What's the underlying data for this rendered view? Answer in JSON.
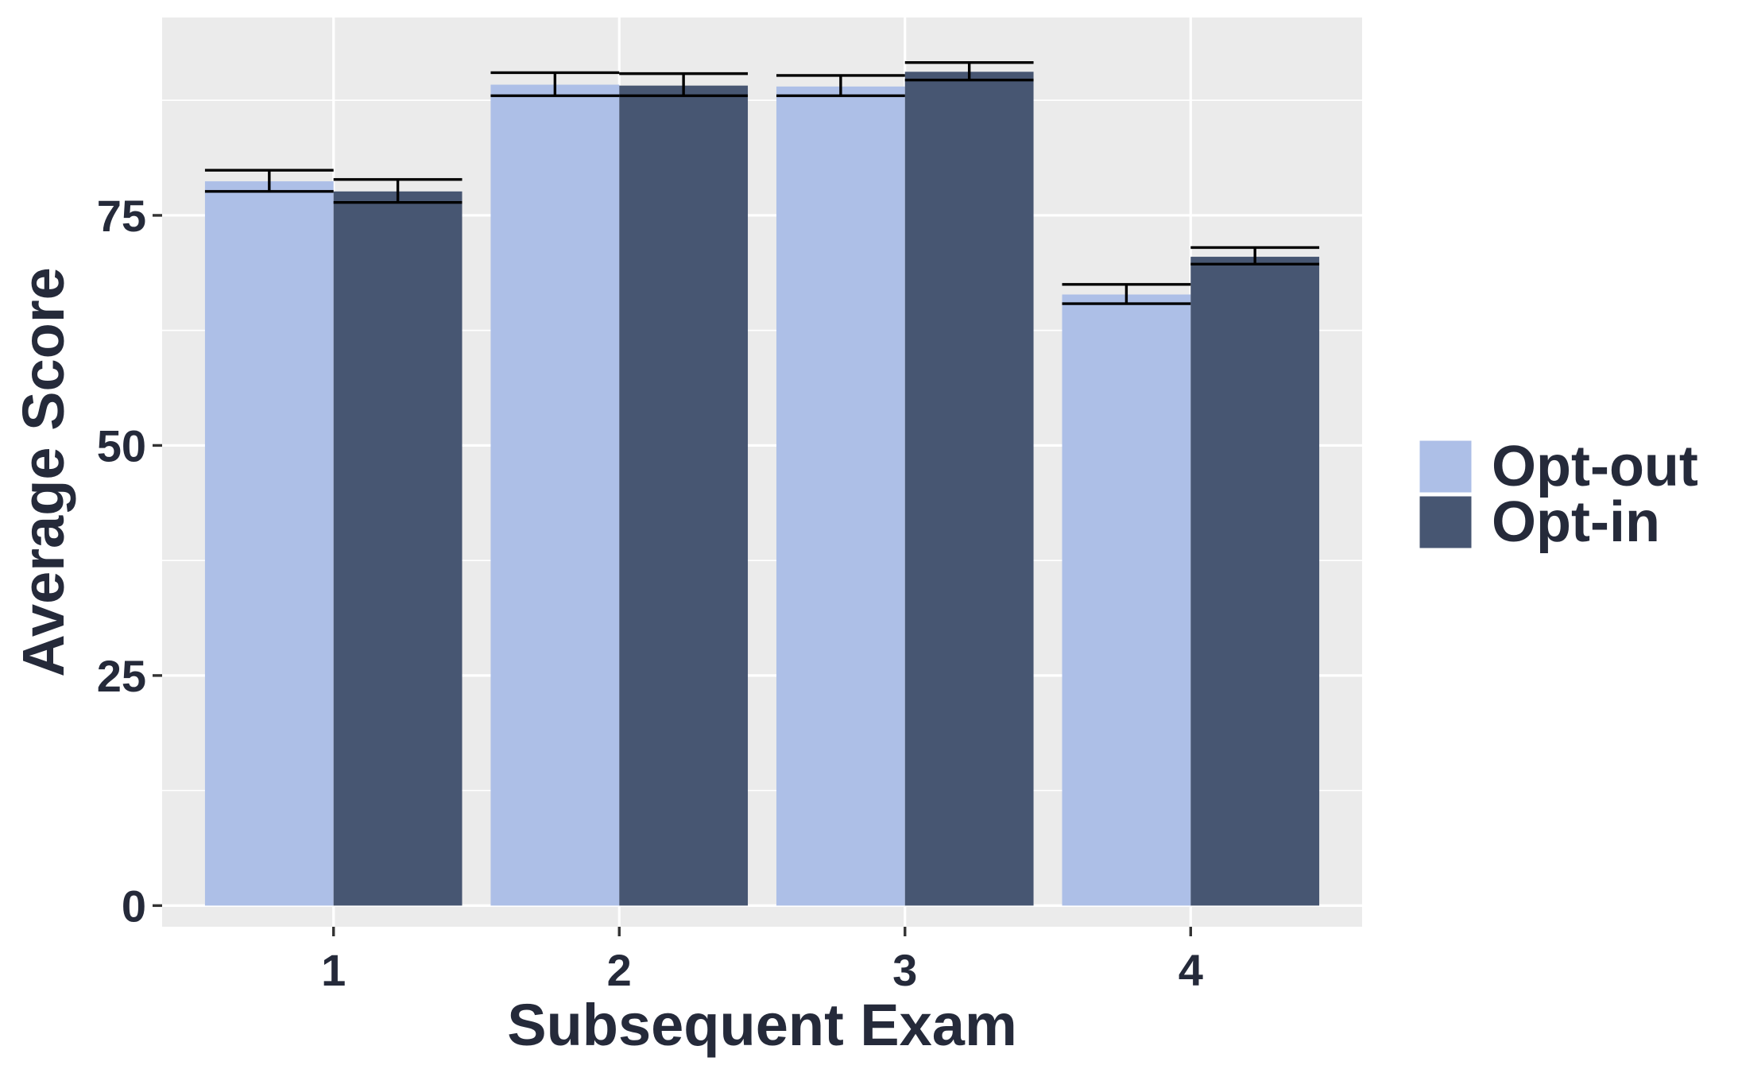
{
  "chart_data": {
    "type": "bar",
    "title": "",
    "xlabel": "Subsequent Exam",
    "ylabel": "Average Score",
    "categories": [
      "1",
      "2",
      "3",
      "4"
    ],
    "ylim": [
      -2.3,
      96.5
    ],
    "yticks": [
      0,
      25,
      50,
      75
    ],
    "yticks_minor": [
      12.5,
      37.5,
      62.5,
      87.5
    ],
    "grid": true,
    "legend_position": "right",
    "series": [
      {
        "name": "Opt-out",
        "color": "#adbfe7",
        "values": [
          78.7,
          89.2,
          89.0,
          66.4
        ],
        "error_low": [
          77.6,
          88.0,
          88.0,
          65.4
        ],
        "error_high": [
          79.9,
          90.5,
          90.2,
          67.5
        ]
      },
      {
        "name": "Opt-in",
        "color": "#475672",
        "values": [
          77.6,
          89.1,
          90.6,
          70.5
        ],
        "error_low": [
          76.4,
          88.0,
          89.7,
          69.7
        ],
        "error_high": [
          78.9,
          90.4,
          91.6,
          71.5
        ]
      }
    ]
  }
}
